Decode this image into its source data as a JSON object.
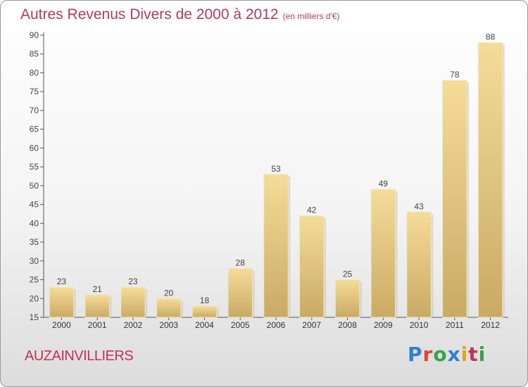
{
  "page": {
    "title": "Autres Revenus Divers de 2000 à 2012",
    "title_unit": "(en milliers d'€)",
    "commune": "AUZAINVILLIERS",
    "logo_text": "Proxiti"
  },
  "chart_data": {
    "type": "bar",
    "title": "Autres Revenus Divers de 2000 à 2012",
    "subtitle": "(en milliers d'€)",
    "xlabel": "",
    "ylabel": "",
    "categories": [
      "2000",
      "2001",
      "2002",
      "2003",
      "2004",
      "2005",
      "2006",
      "2007",
      "2008",
      "2009",
      "2010",
      "2011",
      "2012"
    ],
    "values": [
      23,
      21,
      23,
      20,
      18,
      28,
      53,
      42,
      25,
      49,
      43,
      78,
      88
    ],
    "ylim": [
      15,
      90
    ],
    "yticks": [
      15,
      20,
      25,
      30,
      35,
      40,
      45,
      50,
      55,
      60,
      65,
      70,
      75,
      80,
      85,
      90
    ],
    "grid": false,
    "legend": "none",
    "colors": {
      "bar_light": "#f5dc98",
      "bar_dark": "#c9aa64",
      "axis": "#555555",
      "title": "#b03a5e"
    }
  }
}
